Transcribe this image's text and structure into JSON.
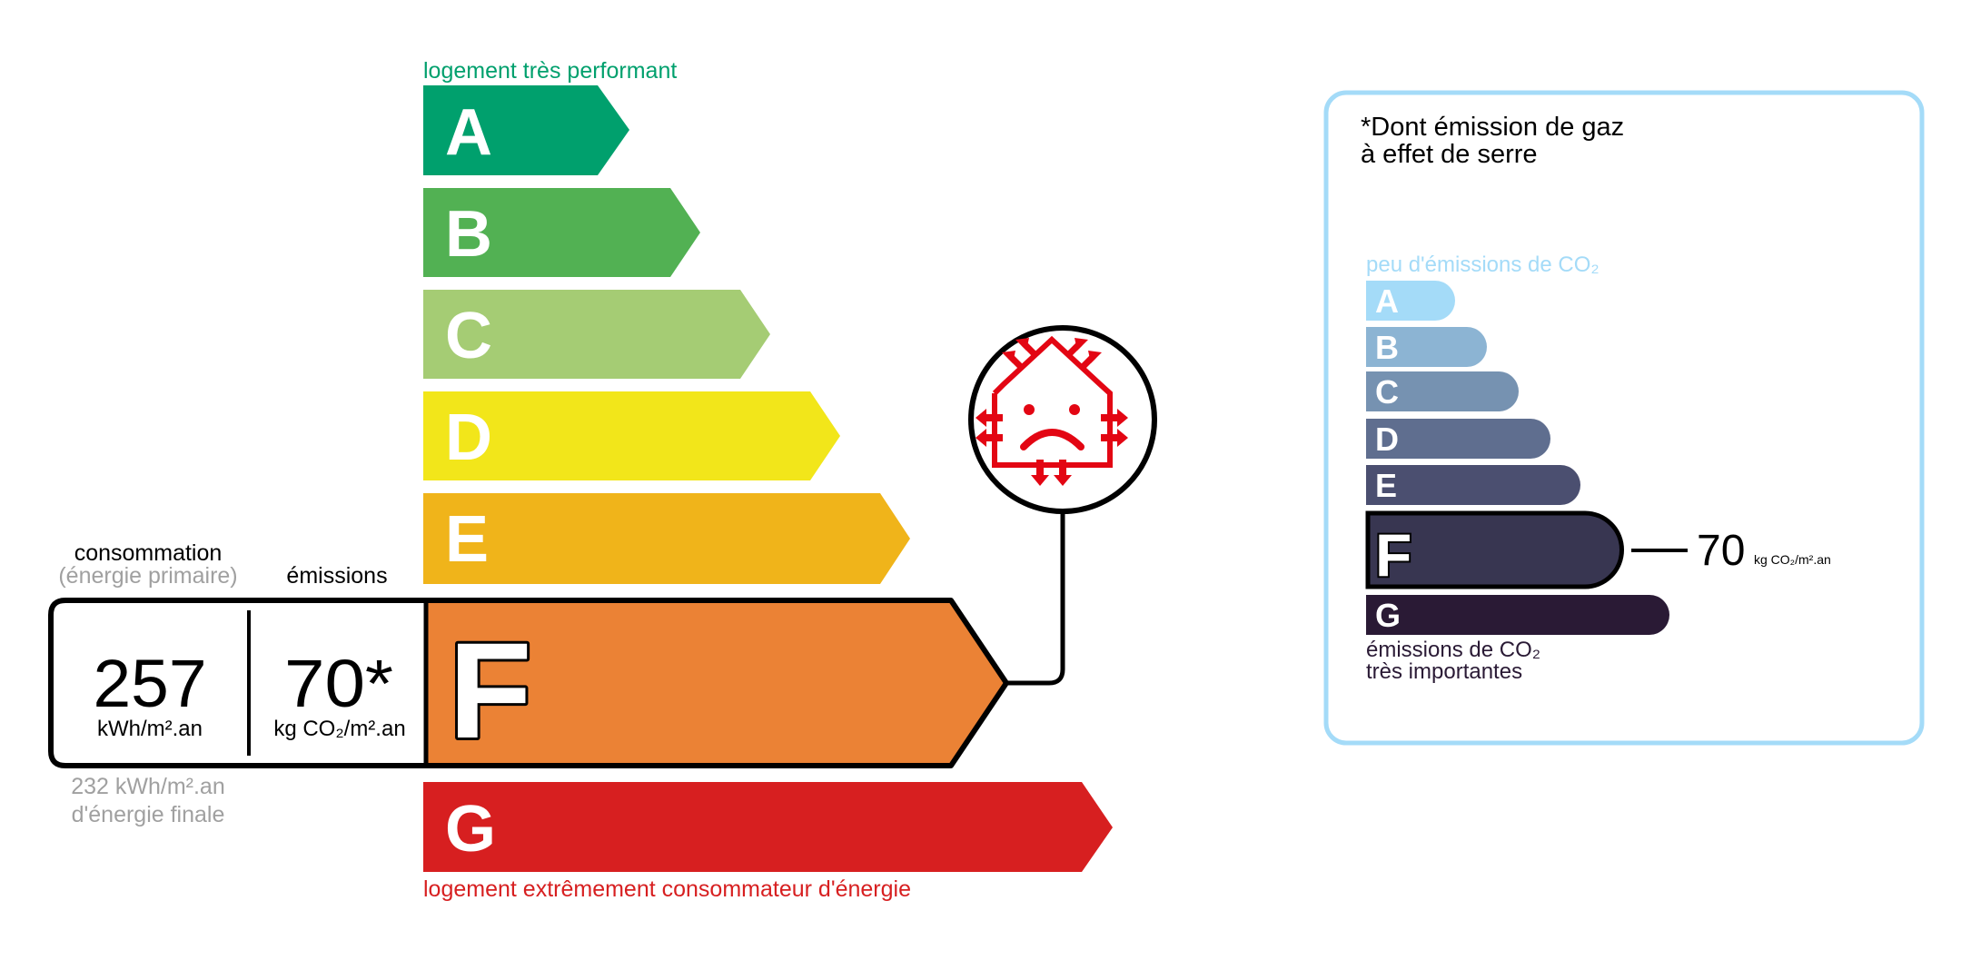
{
  "energy": {
    "top_label": "logement très performant",
    "bottom_label": "logement extrêmement consommateur d'énergie",
    "classes": [
      {
        "label": "A",
        "color": "#00a06d"
      },
      {
        "label": "B",
        "color": "#52b153"
      },
      {
        "label": "C",
        "color": "#a5cc74"
      },
      {
        "label": "D",
        "color": "#f2e61a"
      },
      {
        "label": "E",
        "color": "#f0b41a"
      },
      {
        "label": "F",
        "color": "#eb8235"
      },
      {
        "label": "G",
        "color": "#d71f20"
      }
    ],
    "current_class": "F",
    "consumption_heading": "consommation",
    "consumption_subheading": "(énergie primaire)",
    "emissions_heading": "émissions",
    "consumption_value": "257",
    "consumption_unit": "kWh/m².an",
    "emissions_value": "70*",
    "emissions_unit": "kg CO₂/m².an",
    "final_energy_line1": "232 kWh/m².an",
    "final_energy_line2": "d'énergie finale",
    "icon": "sad-house-heat-loss-icon"
  },
  "ges": {
    "title_line1": "*Dont émission de gaz",
    "title_line2": "à effet de serre",
    "top_label": "peu d'émissions de CO₂",
    "bottom_label_line1": "émissions de CO₂",
    "bottom_label_line2": "très importantes",
    "classes": [
      {
        "label": "A",
        "color": "#a4dbf8"
      },
      {
        "label": "B",
        "color": "#8cb4d3"
      },
      {
        "label": "C",
        "color": "#7692b1"
      },
      {
        "label": "D",
        "color": "#5f6e8f"
      },
      {
        "label": "E",
        "color": "#4b4f70"
      },
      {
        "label": "F",
        "color": "#383651"
      },
      {
        "label": "G",
        "color": "#2a1a35"
      }
    ],
    "current_class": "F",
    "value": "70",
    "unit": "kg CO₂/m².an",
    "border_color": "#a4dbf8"
  }
}
